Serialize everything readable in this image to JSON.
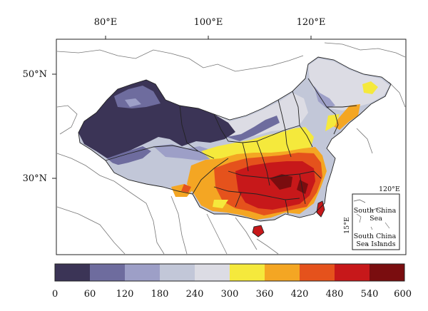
{
  "map": {
    "lon_labels": [
      "80°E",
      "100°E",
      "120°E"
    ],
    "lat_labels": [
      "50°N",
      "30°N"
    ]
  },
  "inset": {
    "lon_label": "120°E",
    "lat_label": "15°E",
    "title": "South China Sea",
    "subtitle": "South China Sea Islands"
  },
  "legend": {
    "ticks": [
      "0",
      "60",
      "120",
      "180",
      "240",
      "300",
      "360",
      "420",
      "480",
      "540",
      "600"
    ],
    "colors": [
      "#3b3456",
      "#6e6c9e",
      "#9d9fc7",
      "#c2c7d8",
      "#dcdce4",
      "#f5e93c",
      "#f4a623",
      "#e5521c",
      "#c7181a",
      "#7a0d0f"
    ]
  }
}
